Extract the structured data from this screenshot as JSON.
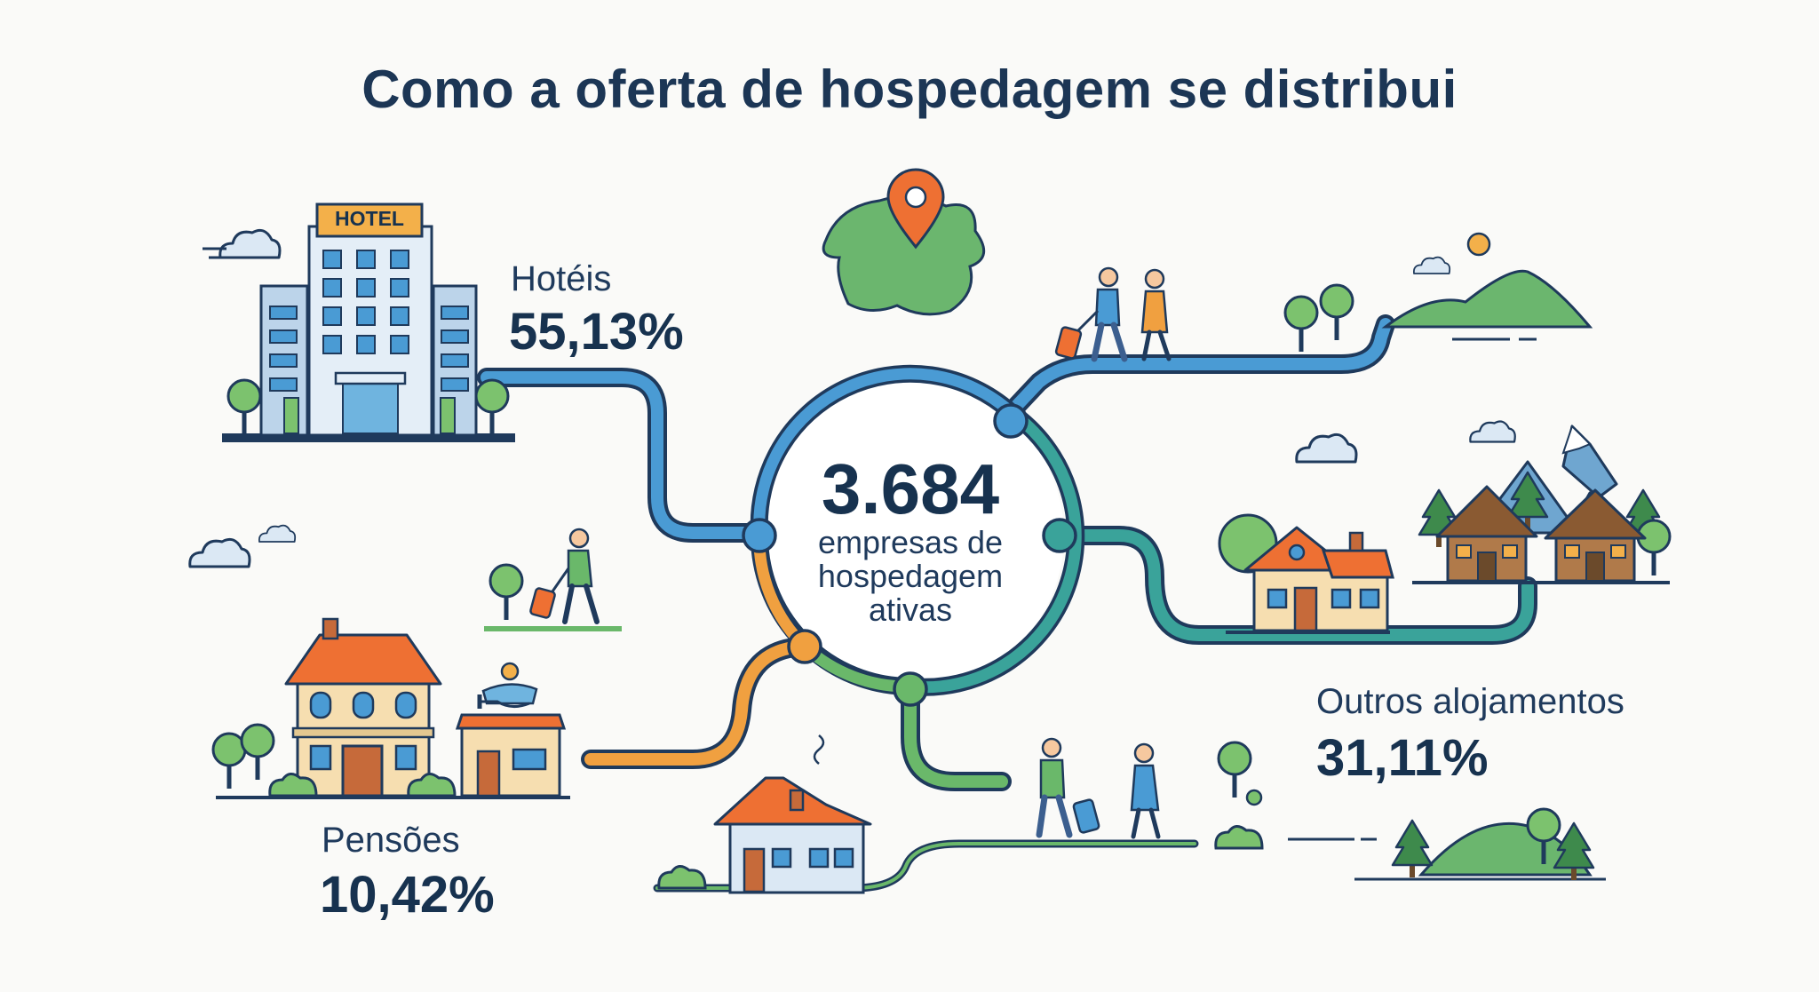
{
  "title": "Como a oferta de hospedagem se distribui",
  "center": {
    "total": "3.684",
    "caption_lines": [
      "empresas de",
      "hospedagem",
      "ativas"
    ]
  },
  "categories": [
    {
      "label": "Hotéis",
      "value": "55,13%",
      "share": 55.13,
      "color": "#4a9bd4"
    },
    {
      "label": "Outros alojamentos",
      "value": "31,11%",
      "share": 31.11,
      "color": "#3aa39a"
    },
    {
      "label": "Pensões",
      "value": "10,42%",
      "share": 10.42,
      "color": "#f0a040"
    }
  ],
  "hotel_sign": "HOTEL",
  "colors": {
    "blue": "#4a9bd4",
    "teal": "#3aa39a",
    "green": "#6ab86a",
    "orange": "#f0a040",
    "pin": "#ee7033",
    "navy": "#17324f"
  }
}
